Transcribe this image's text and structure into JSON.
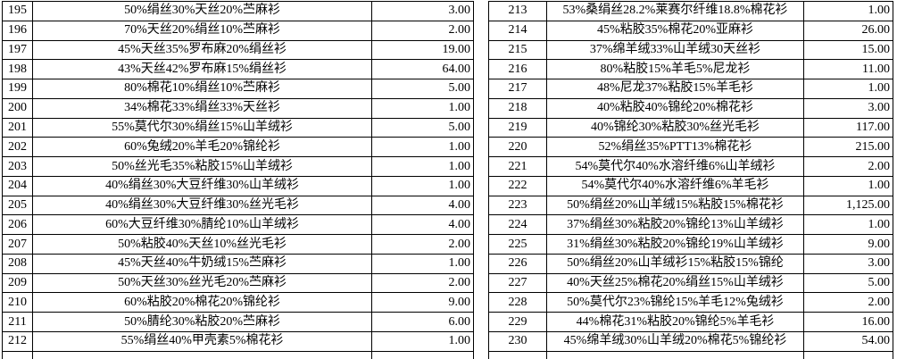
{
  "colors": {
    "border": "#000000",
    "text": "#000000",
    "background": "#ffffff"
  },
  "tables": [
    {
      "rows": [
        {
          "no": "195",
          "desc": "50%绢丝30%天丝20%苎麻衫",
          "value": "3.00"
        },
        {
          "no": "196",
          "desc": "70%天丝20%绢丝10%苎麻衫",
          "value": "2.00"
        },
        {
          "no": "197",
          "desc": "45%天丝35%罗布麻20%绢丝衫",
          "value": "19.00"
        },
        {
          "no": "198",
          "desc": "43%天丝42%罗布麻15%绢丝衫",
          "value": "64.00"
        },
        {
          "no": "199",
          "desc": "80%棉花10%绢丝10%苎麻衫",
          "value": "5.00"
        },
        {
          "no": "200",
          "desc": "34%棉花33%绢丝33%天丝衫",
          "value": "1.00"
        },
        {
          "no": "201",
          "desc": "55%莫代尔30%绢丝15%山羊绒衫",
          "value": "5.00"
        },
        {
          "no": "202",
          "desc": "60%兔绒20%羊毛20%锦纶衫",
          "value": "1.00"
        },
        {
          "no": "203",
          "desc": "50%丝光毛35%粘胶15%山羊绒衫",
          "value": "1.00"
        },
        {
          "no": "204",
          "desc": "40%绢丝30%大豆纤维30%山羊绒衫",
          "value": "1.00"
        },
        {
          "no": "205",
          "desc": "40%绢丝30%大豆纤维30%丝光毛衫",
          "value": "4.00"
        },
        {
          "no": "206",
          "desc": "60%大豆纤维30%腈纶10%山羊绒衫",
          "value": "4.00"
        },
        {
          "no": "207",
          "desc": "50%粘胶40%天丝10%丝光毛衫",
          "value": "2.00"
        },
        {
          "no": "208",
          "desc": "45%天丝40%牛奶绒15%苎麻衫",
          "value": "1.00"
        },
        {
          "no": "209",
          "desc": "50%天丝30%丝光毛20%苎麻衫",
          "value": "2.00"
        },
        {
          "no": "210",
          "desc": "60%粘胶20%棉花20%锦纶衫",
          "value": "9.00"
        },
        {
          "no": "211",
          "desc": "50%腈纶30%粘胶20%苎麻衫",
          "value": "6.00"
        },
        {
          "no": "212",
          "desc": "55%绢丝40%甲壳素5%棉花衫",
          "value": "1.00"
        }
      ]
    },
    {
      "rows": [
        {
          "no": "213",
          "desc": "53%桑绢丝28.2%莱赛尔纤维18.8%棉花衫",
          "value": "1.00"
        },
        {
          "no": "214",
          "desc": "45%粘胶35%棉花20%亚麻衫",
          "value": "26.00"
        },
        {
          "no": "215",
          "desc": "37%绵羊绒33%山羊绒30天丝衫",
          "value": "15.00"
        },
        {
          "no": "216",
          "desc": "80%粘胶15%羊毛5%尼龙衫",
          "value": "11.00"
        },
        {
          "no": "217",
          "desc": "48%尼龙37%粘胶15%羊毛衫",
          "value": "1.00"
        },
        {
          "no": "218",
          "desc": "40%粘胶40%锦纶20%棉花衫",
          "value": "3.00"
        },
        {
          "no": "219",
          "desc": "40%锦纶30%粘胶30%丝光毛衫",
          "value": "117.00"
        },
        {
          "no": "220",
          "desc": "52%绢丝35%PTT13%棉花衫",
          "value": "215.00"
        },
        {
          "no": "221",
          "desc": "54%莫代尔40%水溶纤维6%山羊绒衫",
          "value": "2.00"
        },
        {
          "no": "222",
          "desc": "54%莫代尔40%水溶纤维6%羊毛衫",
          "value": "1.00"
        },
        {
          "no": "223",
          "desc": "50%绢丝20%山羊绒15%粘胶15%棉花衫",
          "value": "1,125.00"
        },
        {
          "no": "224",
          "desc": "37%绢丝30%粘胶20%锦纶13%山羊绒衫",
          "value": "1.00"
        },
        {
          "no": "225",
          "desc": "31%绢丝30%粘胶20%锦纶19%山羊绒衫",
          "value": "9.00"
        },
        {
          "no": "226",
          "desc": "50%绢丝20%山羊绒衫15%粘胶15%锦纶",
          "value": "3.00"
        },
        {
          "no": "227",
          "desc": "40%天丝25%棉花20%绢丝15%山羊绒衫",
          "value": "5.00"
        },
        {
          "no": "228",
          "desc": "50%莫代尔23%锦纶15%羊毛12%兔绒衫",
          "value": "2.00"
        },
        {
          "no": "229",
          "desc": "44%棉花31%粘胶20%锦纶5%羊毛衫",
          "value": "16.00"
        },
        {
          "no": "230",
          "desc": "45%绵羊绒30%山羊绒20%棉花5%锦纶衫",
          "value": "54.00"
        }
      ]
    }
  ]
}
